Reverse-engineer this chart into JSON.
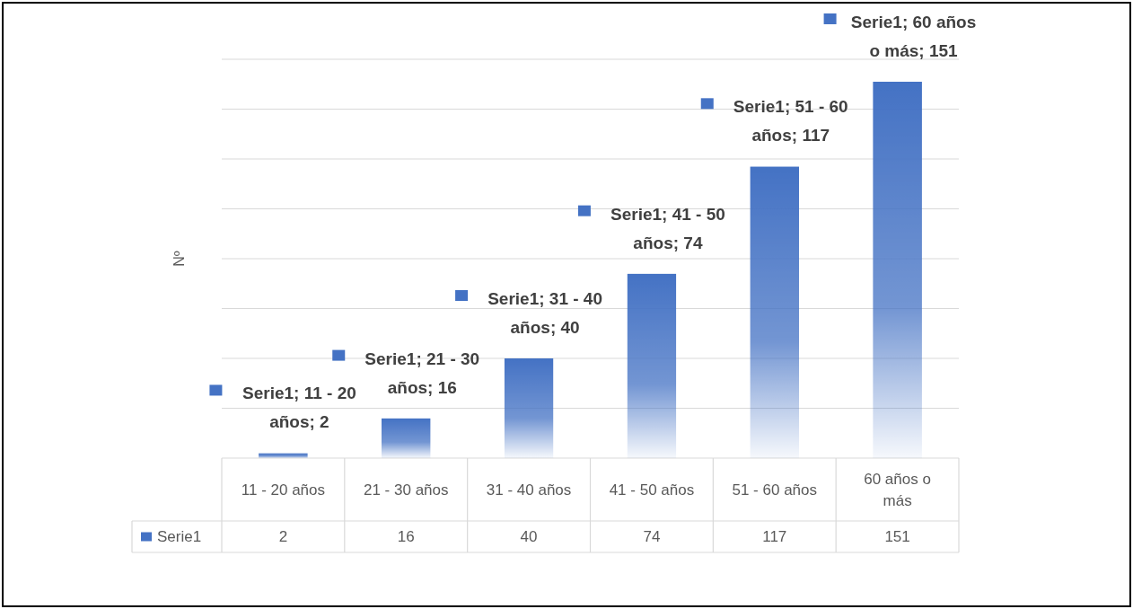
{
  "chart_data": {
    "type": "bar",
    "ylabel": "Nº",
    "categories": [
      "11 - 20 años",
      "21 - 30 años",
      "31 - 40 años",
      "41 - 50 años",
      "51 - 60 años",
      "60 años o más"
    ],
    "series": [
      {
        "name": "Serie1",
        "color": "#4472c4",
        "values": [
          2,
          16,
          40,
          74,
          117,
          151
        ]
      }
    ],
    "annotations": [
      "Serie1; 11 - 20 años; 2",
      "Serie1; 21 - 30 años; 16",
      "Serie1; 31 - 40 años; 40",
      "Serie1; 41 - 50 años; 74",
      "Serie1; 51 - 60 años; 117",
      "Serie1; 60 años o más; 151"
    ],
    "ylim": [
      0,
      160
    ],
    "yticks": [
      {
        "value": 0,
        "label": null
      },
      {
        "value": 20,
        "label": null
      },
      {
        "value": 40,
        "label": null
      },
      {
        "value": 60,
        "label": null
      },
      {
        "value": 80,
        "label": null
      },
      {
        "value": 100,
        "label": null
      },
      {
        "value": 120,
        "label": null
      },
      {
        "value": 140,
        "label": null
      },
      {
        "value": 160,
        "label": null
      }
    ],
    "tick_labels": "x",
    "grid": "y",
    "data_labels": true,
    "legend": "bottom"
  }
}
